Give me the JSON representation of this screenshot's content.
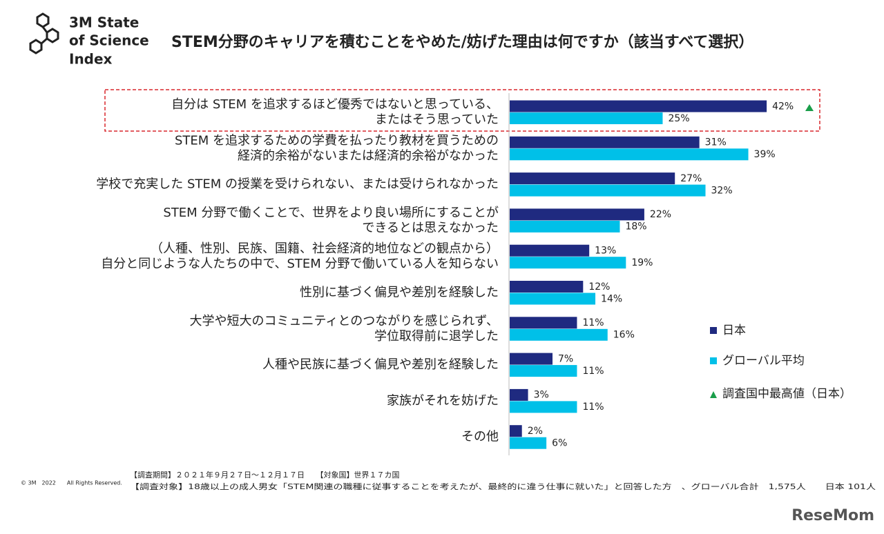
{
  "chart_data": {
    "type": "bar",
    "orientation": "horizontal",
    "title": "STEM分野のキャリアを積むことをやめた/妨げた理由は何ですか（該当すべて選択）",
    "brand": [
      "3M State",
      "of Science",
      "Index"
    ],
    "categories": [
      [
        "自分は STEM を追求するほど優秀ではないと思っている、",
        "またはそう思っていた"
      ],
      [
        "STEM を追求するための学費を払ったり教材を買うための",
        "経済的余裕がないまたは経済的余裕がなかった"
      ],
      [
        "学校で充実した STEM の授業を受けられない、または受けられなかった"
      ],
      [
        "STEM 分野で働くことで、世界をより良い場所にすることが",
        "できるとは思えなかった"
      ],
      [
        "（人種、性別、民族、国籍、社会経済的地位などの観点から）",
        "自分と同じような人たちの中で、STEM 分野で働いている人を知らない"
      ],
      [
        "性別に基づく偏見や差別を経験した"
      ],
      [
        "大学や短大のコミュニティとのつながりを感じられず、",
        "学位取得前に退学した"
      ],
      [
        "人種や民族に基づく偏見や差別を経験した"
      ],
      [
        "家族がそれを妨げた"
      ],
      [
        "その他"
      ]
    ],
    "series": [
      {
        "name": "日本",
        "color": "#1f2a80",
        "values": [
          42,
          31,
          27,
          22,
          13,
          12,
          11,
          7,
          3,
          2
        ],
        "value_labels": [
          "42%",
          "31%",
          "27%",
          "22%",
          "13%",
          "12%",
          "11%",
          "7%",
          "3%",
          "2%"
        ]
      },
      {
        "name": "グローバル平均",
        "color": "#00c0e8",
        "values": [
          25,
          39,
          32,
          18,
          19,
          14,
          16,
          11,
          11,
          6
        ],
        "value_labels": [
          "25%",
          "39%",
          "32%",
          "18%",
          "19%",
          "14%",
          "16%",
          "11%",
          "11%",
          "6%"
        ]
      }
    ],
    "highlight_legend": "調査国中最高値（日本）",
    "highlight_color": "#1a9e4a",
    "footnotes": [
      "【調査期間】２０２１年９月２７日～１２月１７日　　【対象国】世界１７カ国",
      "【調査対象】18歳以上の成人男女「STEM関連の職種に従事することを考えたが、最終的に違う仕事に就いた」と回答した方　、グローバル合計　1,575人　　日本 101人"
    ],
    "copyright": "© 3M　2022　　All Rights Reserved.",
    "watermark": "ReseMom"
  }
}
